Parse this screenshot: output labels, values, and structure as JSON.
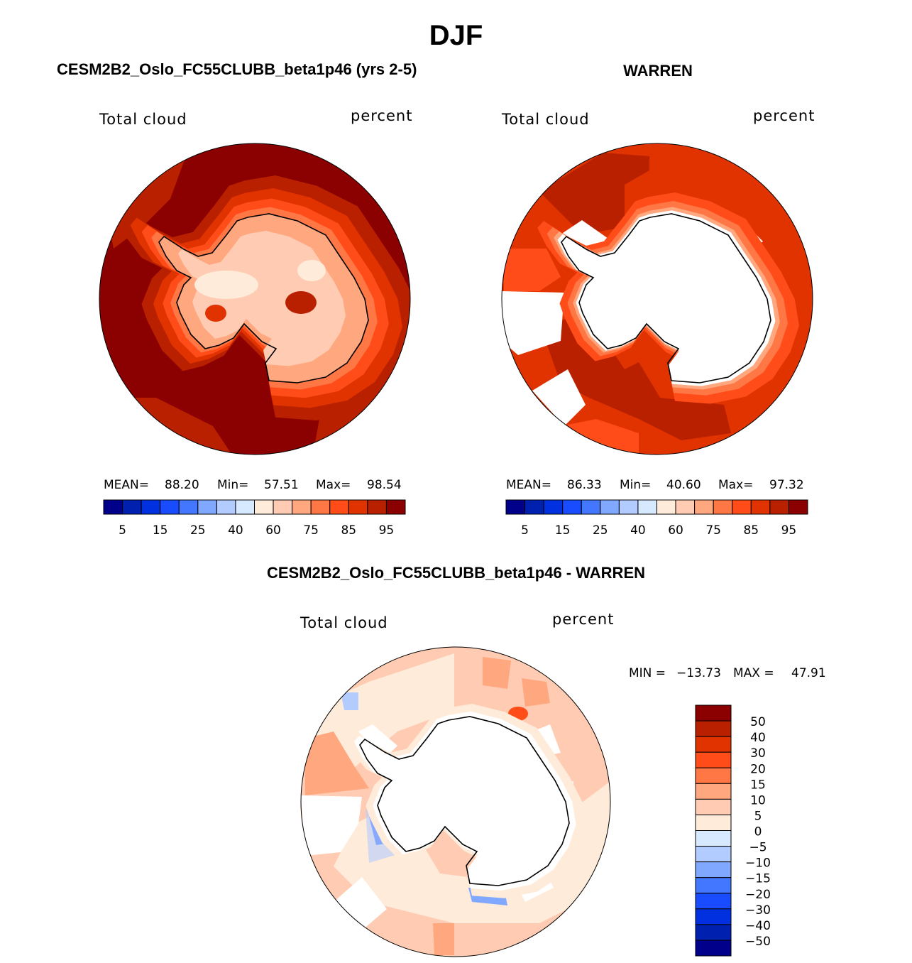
{
  "page_title": "DJF",
  "chart_data": [
    {
      "type": "heatmap",
      "projection": "south polar stereographic",
      "title": "CESM2B2_Oslo_FC55CLUBB_beta1p46 (yrs 2-5)",
      "left_label": "Total cloud",
      "right_label": "percent",
      "stats": {
        "mean_label": "MEAN=",
        "mean": "88.20",
        "min_label": "Min=",
        "min": "57.51",
        "max_label": "Max=",
        "max": "98.54"
      },
      "colorbar": {
        "orientation": "horizontal",
        "tick_labels": [
          "5",
          "15",
          "25",
          "40",
          "60",
          "75",
          "85",
          "95"
        ]
      }
    },
    {
      "type": "heatmap",
      "projection": "south polar stereographic",
      "title": "WARREN",
      "left_label": "Total cloud",
      "right_label": "percent",
      "stats": {
        "mean_label": "MEAN=",
        "mean": "86.33",
        "min_label": "Min=",
        "min": "40.60",
        "max_label": "Max=",
        "max": "97.32"
      },
      "colorbar": {
        "orientation": "horizontal",
        "tick_labels": [
          "5",
          "15",
          "25",
          "40",
          "60",
          "75",
          "85",
          "95"
        ]
      }
    },
    {
      "type": "heatmap",
      "projection": "south polar stereographic",
      "title": "CESM2B2_Oslo_FC55CLUBB_beta1p46 - WARREN",
      "left_label": "Total cloud",
      "right_label": "percent",
      "stats": {
        "min_label": "MIN =",
        "min": "−13.73",
        "max_label": "MAX =",
        "max": "47.91"
      },
      "colorbar": {
        "orientation": "vertical",
        "tick_labels": [
          "50",
          "40",
          "30",
          "20",
          "15",
          "10",
          "5",
          "0",
          "−5",
          "−10",
          "−15",
          "−20",
          "−30",
          "−40",
          "−50"
        ]
      }
    }
  ],
  "colors": [
    "#00008b",
    "#0020b0",
    "#0030e0",
    "#1a4cff",
    "#4477ff",
    "#80a8ff",
    "#b3ccff",
    "#d6e9ff",
    "#ffebd9",
    "#ffccb3",
    "#ffa880",
    "#ff7744",
    "#ff4c19",
    "#e03300",
    "#b82000",
    "#8b0000"
  ]
}
